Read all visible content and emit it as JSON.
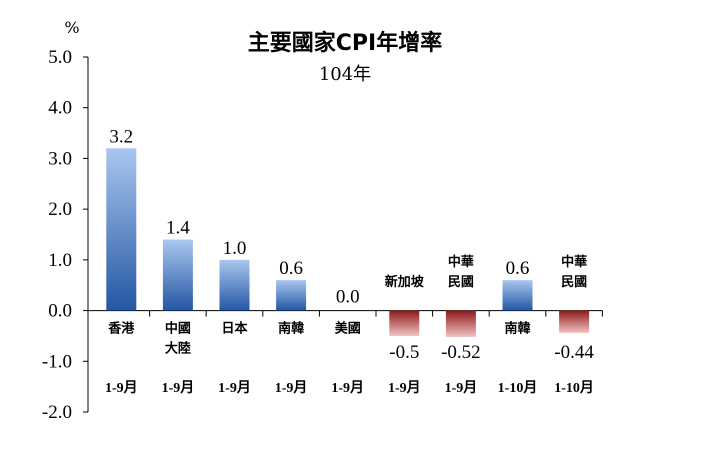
{
  "chart_data": {
    "type": "bar",
    "title": "主要國家CPI年增率",
    "subtitle": "104年",
    "unit_label": "%",
    "ylim": [
      -2.0,
      5.0
    ],
    "yticks": [
      "5.0",
      "4.0",
      "3.0",
      "2.0",
      "1.0",
      "0.0",
      "-1.0",
      "-2.0"
    ],
    "ytick_values": [
      5,
      4,
      3,
      2,
      1,
      0,
      -1,
      -2
    ],
    "categories": [
      {
        "name_lines": [
          "香港"
        ],
        "period": "1-9月"
      },
      {
        "name_lines": [
          "中國",
          "大陸"
        ],
        "period": "1-9月"
      },
      {
        "name_lines": [
          "日本"
        ],
        "period": "1-9月"
      },
      {
        "name_lines": [
          "南韓"
        ],
        "period": "1-9月"
      },
      {
        "name_lines": [
          "美國"
        ],
        "period": "1-9月"
      },
      {
        "name_lines": [
          "新加坡"
        ],
        "period": "1-9月"
      },
      {
        "name_lines": [
          "中華",
          "民國"
        ],
        "period": "1-9月"
      },
      {
        "name_lines": [
          "南韓"
        ],
        "period": "1-10月"
      },
      {
        "name_lines": [
          "中華",
          "民國"
        ],
        "period": "1-10月"
      }
    ],
    "values": [
      3.2,
      1.4,
      1.0,
      0.6,
      0.0,
      -0.5,
      -0.52,
      0.6,
      -0.44
    ],
    "data_labels": [
      "3.2",
      "1.4",
      "1.0",
      "0.6",
      "0.0",
      "-0.5",
      "-0.52",
      "0.6",
      "-0.44"
    ],
    "grid": false,
    "legend": "none",
    "colors": {
      "positive_top": "#a9c7ee",
      "positive_bottom": "#2456a4",
      "negative_top": "#8e1a1a",
      "negative_bottom": "#f2c2c2"
    }
  }
}
